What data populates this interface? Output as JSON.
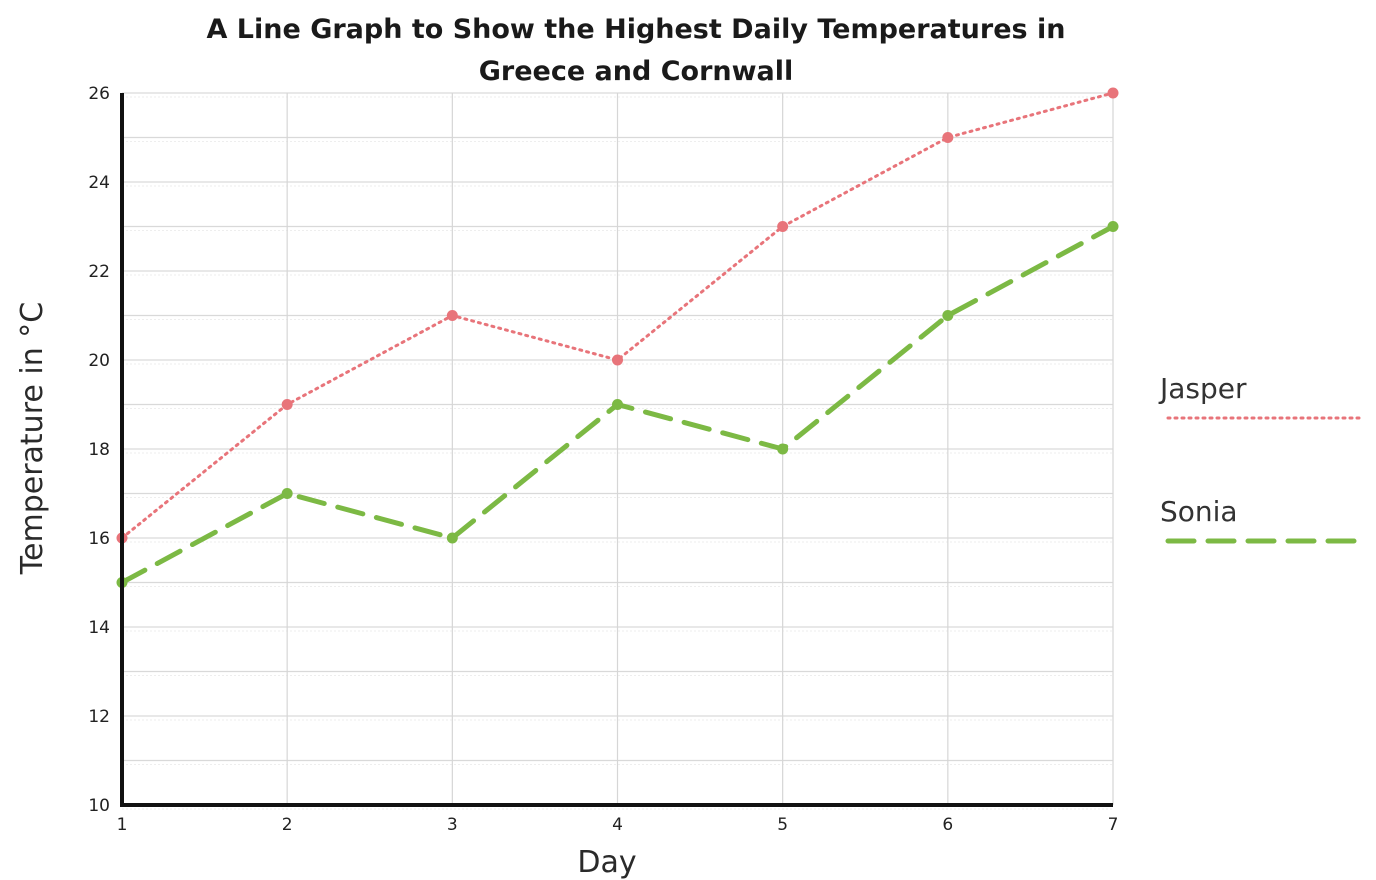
{
  "chart_data": {
    "type": "line",
    "title_line1": "A Line Graph to Show the Highest Daily Temperatures in",
    "title_line2": "Greece and Cornwall",
    "xlabel": "Day",
    "ylabel": "Temperature in °C",
    "x": [
      1,
      2,
      3,
      4,
      5,
      6,
      7
    ],
    "xlim": [
      1,
      7
    ],
    "ylim": [
      10,
      26
    ],
    "yticks": [
      10,
      12,
      14,
      16,
      18,
      20,
      22,
      24,
      26
    ],
    "grid": true,
    "legend_position": "right",
    "series": [
      {
        "name": "Jasper",
        "values": [
          16,
          19,
          21,
          20,
          23,
          25,
          26
        ],
        "color": "#e8747a",
        "style": "dotted"
      },
      {
        "name": "Sonia",
        "values": [
          15,
          17,
          16,
          19,
          18,
          21,
          23
        ],
        "color": "#7cb944",
        "style": "dashed"
      }
    ]
  }
}
